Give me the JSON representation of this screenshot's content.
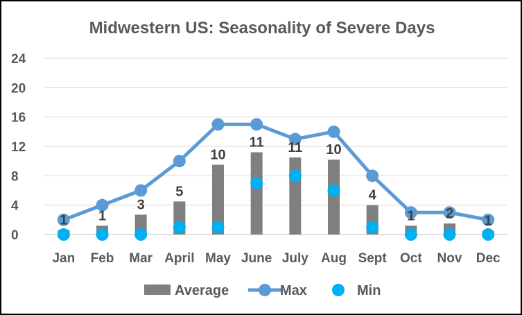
{
  "chart_data": {
    "type": "bar",
    "title": "Midwestern US: Seasonality of Severe Days",
    "categories": [
      "Jan",
      "Feb",
      "Mar",
      "April",
      "May",
      "June",
      "July",
      "Aug",
      "Sept",
      "Oct",
      "Nov",
      "Dec"
    ],
    "ylim": [
      0,
      24
    ],
    "yticks": [
      0,
      4,
      8,
      12,
      16,
      20,
      24
    ],
    "series": [
      {
        "name": "Average",
        "kind": "bar",
        "color": "#7f7f7f",
        "values": [
          0.6,
          1.2,
          2.7,
          4.5,
          9.5,
          11.2,
          10.5,
          10.2,
          4.0,
          1.2,
          1.5,
          0.5
        ],
        "labels": [
          "1",
          "1",
          "3",
          "5",
          "10",
          "11",
          "11",
          "10",
          "4",
          "1",
          "2",
          "1"
        ]
      },
      {
        "name": "Max",
        "kind": "line",
        "color": "#5b9bd5",
        "values": [
          2,
          4,
          6,
          10,
          15,
          15,
          13,
          14,
          8,
          3,
          3,
          2
        ]
      },
      {
        "name": "Min",
        "kind": "scatter",
        "color": "#00b0f0",
        "values": [
          0,
          0,
          0,
          1,
          1,
          7,
          8,
          6,
          1,
          0,
          0,
          0
        ]
      }
    ],
    "grid": "horizontal",
    "legend": "bottom"
  }
}
